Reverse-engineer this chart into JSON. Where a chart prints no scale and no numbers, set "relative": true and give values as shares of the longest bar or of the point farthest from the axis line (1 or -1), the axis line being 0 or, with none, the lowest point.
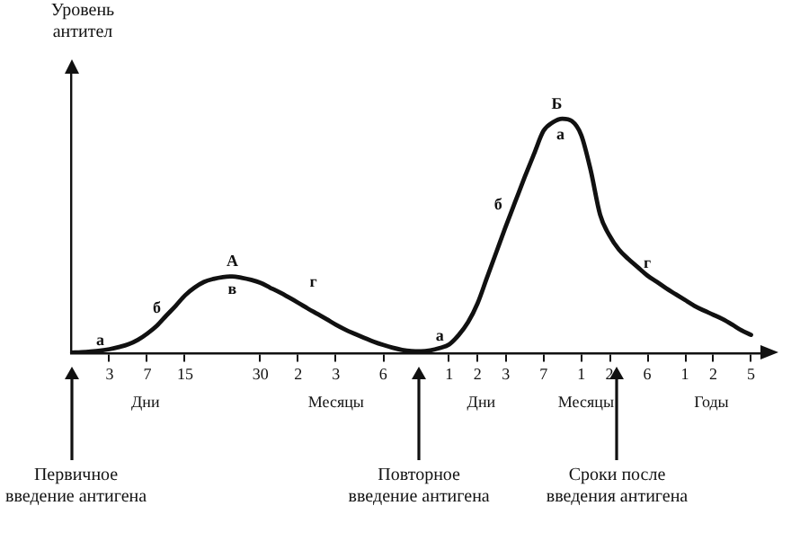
{
  "chart_data": {
    "type": "line",
    "relative": true,
    "ylabel": "Уровень\nантител",
    "marker": "none",
    "legend": false,
    "categories": [
      null,
      null,
      null,
      null,
      "3",
      null,
      null,
      null,
      "7",
      null,
      null,
      null,
      "15",
      null,
      null,
      null,
      null,
      null,
      null,
      null,
      "30",
      null,
      null,
      null,
      "2",
      null,
      null,
      null,
      "3",
      null,
      null,
      null,
      null,
      "6",
      null,
      null,
      null,
      null,
      null,
      null,
      "1",
      null,
      null,
      "2",
      null,
      null,
      "3",
      null,
      null,
      null,
      "7",
      null,
      null,
      null,
      "1",
      null,
      null,
      "2",
      null,
      null,
      null,
      "6",
      null,
      null,
      null,
      "1",
      null,
      null,
      "2",
      null,
      null,
      null,
      "5",
      null
    ],
    "series": [
      {
        "color": "#111111",
        "values": [
          0,
          0.002,
          0.005,
          0.009,
          0.015,
          0.024,
          0.036,
          0.055,
          0.082,
          0.115,
          0.158,
          0.2,
          0.245,
          0.278,
          0.302,
          0.315,
          0.323,
          0.326,
          0.32,
          0.311,
          0.298,
          0.278,
          0.258,
          0.236,
          0.213,
          0.189,
          0.166,
          0.143,
          0.119,
          0.098,
          0.08,
          0.063,
          0.047,
          0.033,
          0.021,
          0.012,
          0.007,
          0.006,
          0.01,
          0.02,
          0.035,
          0.075,
          0.13,
          0.21,
          0.32,
          0.43,
          0.54,
          0.645,
          0.75,
          0.85,
          0.948,
          0.985,
          1,
          0.99,
          0.93,
          0.78,
          0.59,
          0.5,
          0.44,
          0.4,
          0.365,
          0.33,
          0.303,
          0.275,
          0.25,
          0.225,
          0.2,
          0.18,
          0.162,
          0.143,
          0.12,
          0.095,
          0.076,
          null
        ]
      }
    ],
    "annotations": [
      "а",
      "б",
      "А",
      "в",
      "г",
      "а",
      "б",
      "Б",
      "а",
      "г",
      "Дни",
      "Месяцы",
      "Дни",
      "Месяцы",
      "Годы",
      "Первичное\nвведение антигена",
      "Повторное\nвведение антигена",
      "Сроки после\nвведения антигена"
    ]
  }
}
